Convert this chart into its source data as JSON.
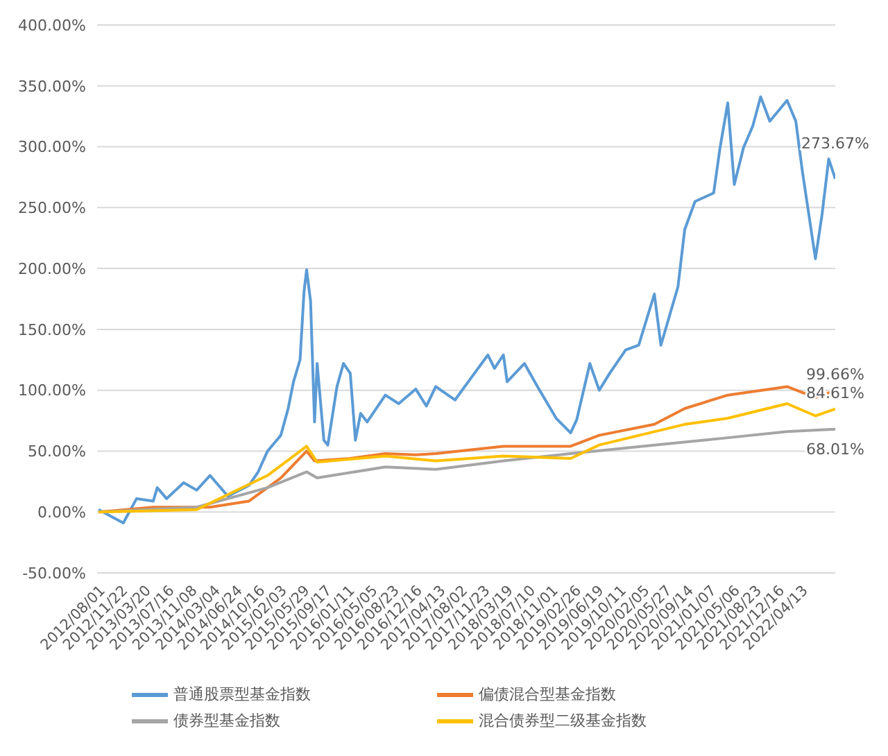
{
  "chart_data": {
    "type": "line",
    "xlim": [
      "2012-07-25",
      "2022-10-02"
    ],
    "xticks": [
      {
        "value": "2012-08-01",
        "label": "2012/08/01"
      },
      {
        "value": "2012-11-22",
        "label": "2012/11/22"
      },
      {
        "value": "2013-03-20",
        "label": "2013/03/20"
      },
      {
        "value": "2013-07-16",
        "label": "2013/07/16"
      },
      {
        "value": "2013-11-08",
        "label": "2013/11/08"
      },
      {
        "value": "2014-03-04",
        "label": "2014/03/04"
      },
      {
        "value": "2014-06-24",
        "label": "2014/06/24"
      },
      {
        "value": "2014-10-16",
        "label": "2014/10/16"
      },
      {
        "value": "2015-02-03",
        "label": "2015/02/03"
      },
      {
        "value": "2015-05-29",
        "label": "2015/05/29"
      },
      {
        "value": "2015-09-17",
        "label": "2015/09/17"
      },
      {
        "value": "2016-01-11",
        "label": "2016/01/11"
      },
      {
        "value": "2016-05-05",
        "label": "2016/05/05"
      },
      {
        "value": "2016-08-23",
        "label": "2016/08/23"
      },
      {
        "value": "2016-12-16",
        "label": "2016/12/16"
      },
      {
        "value": "2017-04-13",
        "label": "2017/04/13"
      },
      {
        "value": "2017-08-02",
        "label": "2017/08/02"
      },
      {
        "value": "2017-11-23",
        "label": "2017/11/23"
      },
      {
        "value": "2018-03-19",
        "label": "2018/03/19"
      },
      {
        "value": "2018-07-10",
        "label": "2018/07/10"
      },
      {
        "value": "2018-11-01",
        "label": "2018/11/01"
      },
      {
        "value": "2019-02-26",
        "label": "2019/02/26"
      },
      {
        "value": "2019-06-19",
        "label": "2019/06/19"
      },
      {
        "value": "2019-10-11",
        "label": "2019/10/11"
      },
      {
        "value": "2020-02-05",
        "label": "2020/02/05"
      },
      {
        "value": "2020-05-27",
        "label": "2020/05/27"
      },
      {
        "value": "2020-09-14",
        "label": "2020/09/14"
      },
      {
        "value": "2021-01-07",
        "label": "2021/01/07"
      },
      {
        "value": "2021-05-06",
        "label": "2021/05/06"
      },
      {
        "value": "2021-08-23",
        "label": "2021/08/23"
      },
      {
        "value": "2021-12-16",
        "label": "2021/12/16"
      },
      {
        "value": "2022-04-13",
        "label": "2022/04/13"
      }
    ],
    "ylim": [
      -50,
      400
    ],
    "yticks": [
      {
        "value": -50,
        "label": "-50.00%"
      },
      {
        "value": 0,
        "label": "0.00%"
      },
      {
        "value": 50,
        "label": "50.00%"
      },
      {
        "value": 100,
        "label": "100.00%"
      },
      {
        "value": 150,
        "label": "150.00%"
      },
      {
        "value": 200,
        "label": "200.00%"
      },
      {
        "value": 250,
        "label": "250.00%"
      },
      {
        "value": 300,
        "label": "300.00%"
      },
      {
        "value": 350,
        "label": "350.00%"
      },
      {
        "value": 400,
        "label": "400.00%"
      }
    ],
    "grid": "y",
    "legend": "bottom",
    "marker": "none",
    "line_style": "solid",
    "series": [
      {
        "name": "普通股票型基金指数",
        "color": "#5b9bd5",
        "x": [
          "2012-08-01",
          "2012-12-04",
          "2013-02-09",
          "2013-05-04",
          "2013-05-24",
          "2013-07-10",
          "2013-10-04",
          "2013-12-09",
          "2014-02-14",
          "2014-05-15",
          "2014-08-30",
          "2014-10-15",
          "2014-12-01",
          "2015-02-06",
          "2015-03-15",
          "2015-04-11",
          "2015-05-14",
          "2015-06-03",
          "2015-06-16",
          "2015-07-06",
          "2015-07-26",
          "2015-08-08",
          "2015-09-11",
          "2015-10-01",
          "2015-11-16",
          "2015-12-19",
          "2016-01-22",
          "2016-02-17",
          "2016-03-14",
          "2016-04-16",
          "2016-07-17",
          "2016-09-22",
          "2016-12-17",
          "2017-02-09",
          "2017-03-28",
          "2017-07-03",
          "2017-09-08",
          "2017-12-16",
          "2018-01-18",
          "2018-03-04",
          "2018-03-23",
          "2018-06-18",
          "2018-08-23",
          "2018-11-25",
          "2019-02-06",
          "2019-03-09",
          "2019-05-14",
          "2019-06-30",
          "2019-08-22",
          "2019-11-10",
          "2020-01-15",
          "2020-04-03",
          "2020-05-06",
          "2020-07-31",
          "2020-09-03",
          "2020-10-25",
          "2021-01-27",
          "2021-02-28",
          "2021-04-08",
          "2021-05-11",
          "2021-06-26",
          "2021-08-12",
          "2021-09-21",
          "2021-11-06",
          "2022-02-01",
          "2022-03-17",
          "2022-04-19",
          "2022-06-24",
          "2022-07-27",
          "2022-08-30",
          "2022-10-02"
        ],
        "values": [
          2,
          -9,
          11,
          9,
          20,
          11,
          24,
          18,
          30,
          13,
          22,
          33,
          50,
          63,
          85,
          107,
          125,
          181,
          199,
          173,
          74,
          122,
          59,
          55,
          103,
          122,
          114,
          59,
          81,
          74,
          96,
          89,
          101,
          87,
          103,
          92,
          107,
          129,
          118,
          129,
          107,
          122,
          103,
          77,
          65,
          76,
          122,
          100,
          114,
          133,
          137,
          179,
          137,
          185,
          232,
          255,
          262,
          299,
          336,
          269,
          299,
          317,
          341,
          321,
          338,
          321,
          280,
          208,
          244,
          290,
          273.67
        ]
      },
      {
        "name": "偏债混合型基金指数",
        "color": "#ed7d31",
        "x": [
          "2012-08-01",
          "2013-05-04",
          "2014-02-14",
          "2014-08-30",
          "2015-02-06",
          "2015-06-16",
          "2015-07-26",
          "2016-01-22",
          "2016-07-17",
          "2016-12-17",
          "2017-03-28",
          "2018-03-04",
          "2019-02-06",
          "2019-06-30",
          "2020-04-03",
          "2020-09-03",
          "2021-04-08",
          "2022-02-01",
          "2022-06-24",
          "2022-10-02"
        ],
        "values": [
          0,
          4,
          4,
          9,
          28,
          50,
          42,
          44,
          48,
          47,
          48,
          54,
          54,
          63,
          72,
          85,
          96,
          103,
          94,
          99.66
        ]
      },
      {
        "name": "债券型基金指数",
        "color": "#a5a5a5",
        "x": [
          "2012-08-01",
          "2013-12-09",
          "2014-12-01",
          "2015-06-16",
          "2015-08-08",
          "2016-07-17",
          "2017-03-28",
          "2018-03-04",
          "2019-02-06",
          "2020-04-03",
          "2021-04-08",
          "2022-02-01",
          "2022-10-02"
        ],
        "values": [
          0,
          4,
          20,
          33,
          28,
          37,
          35,
          42,
          48,
          55,
          61,
          66,
          68.01
        ]
      },
      {
        "name": "混合债券型二级基金指数",
        "color": "#ffc000",
        "x": [
          "2012-08-01",
          "2013-12-09",
          "2014-12-01",
          "2015-06-16",
          "2015-08-08",
          "2016-07-17",
          "2017-03-28",
          "2018-03-04",
          "2019-02-06",
          "2019-06-30",
          "2020-04-03",
          "2020-09-03",
          "2021-04-08",
          "2022-02-01",
          "2022-06-24",
          "2022-10-02"
        ],
        "values": [
          0,
          2,
          30,
          54,
          41,
          46,
          42,
          46,
          44,
          55,
          66,
          72,
          77,
          89,
          79,
          84.61
        ]
      }
    ],
    "annotations": [
      {
        "text": "273.67%",
        "x": "2022-10-02",
        "y": 273.67
      },
      {
        "text": "99.66%",
        "x": "2022-10-02",
        "y": 99.66
      },
      {
        "text": "84.61%",
        "x": "2022-10-02",
        "y": 84.61
      },
      {
        "text": "68.01%",
        "x": "2022-10-02",
        "y": 68.01
      }
    ]
  }
}
